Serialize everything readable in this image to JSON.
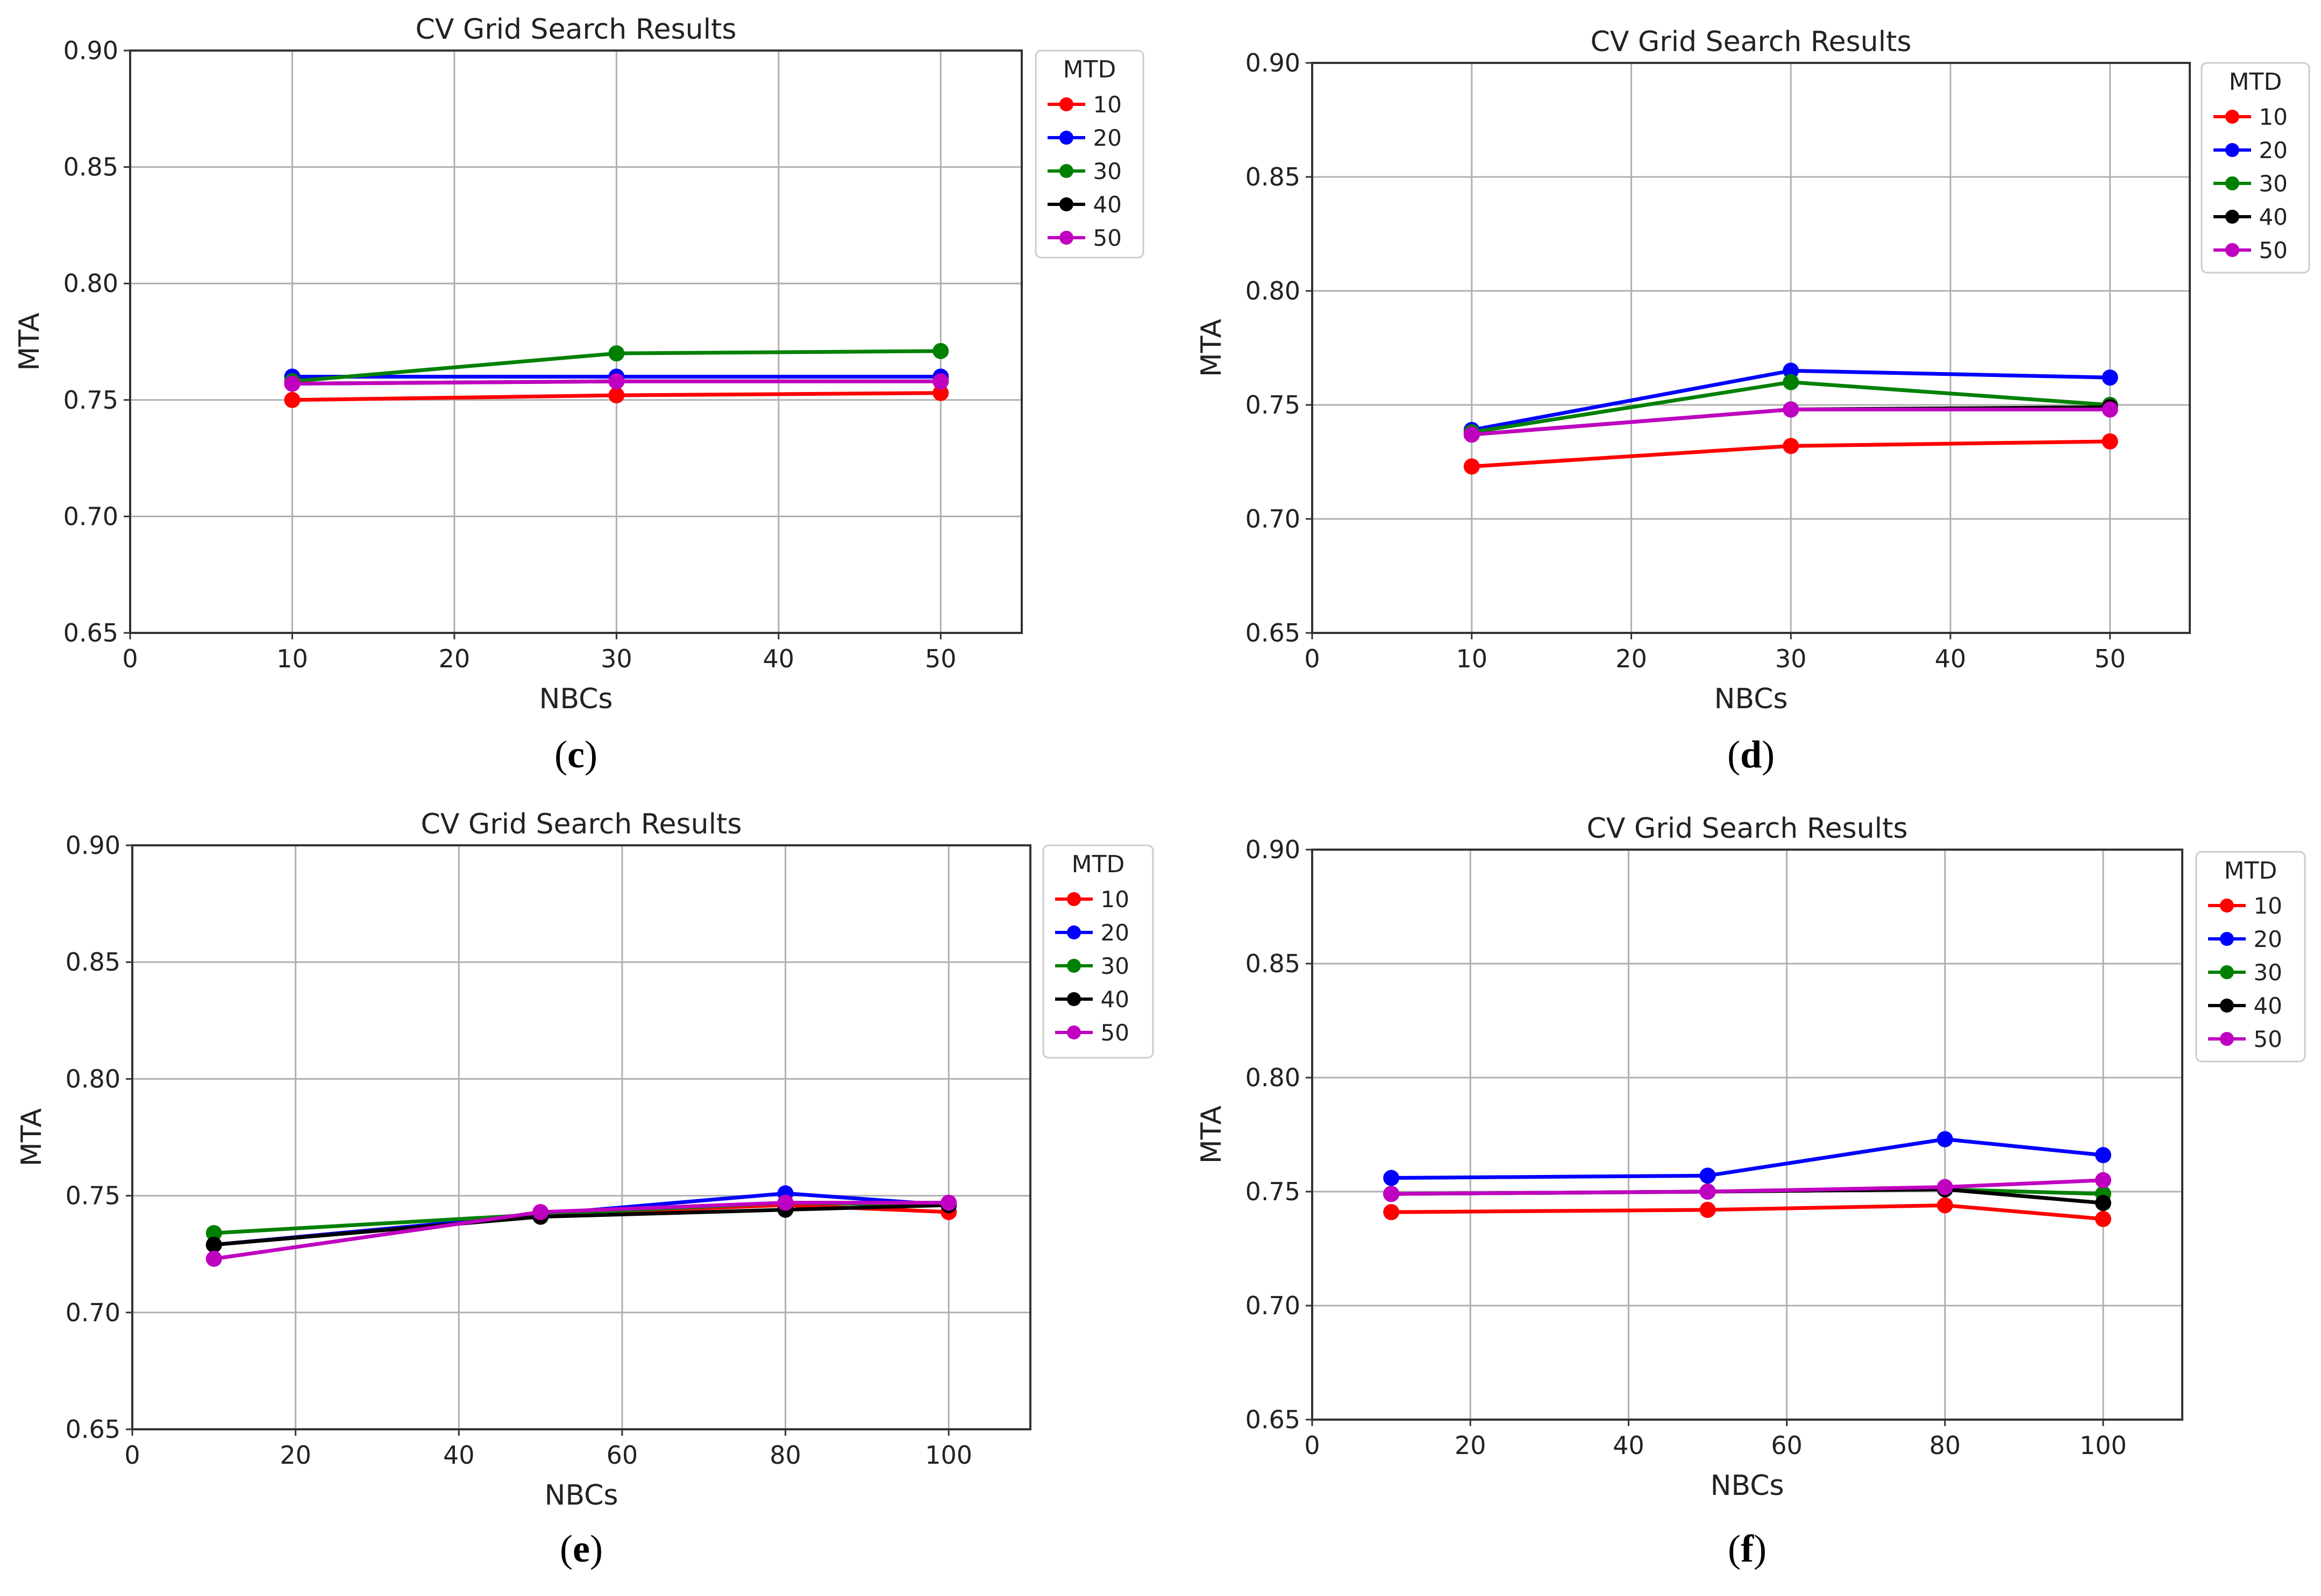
{
  "series_colors": {
    "10": "#ff0000",
    "20": "#0000ff",
    "30": "#008000",
    "40": "#000000",
    "50": "#c000c0"
  },
  "chart_data": [
    {
      "id": "c",
      "type": "line",
      "title": "CV Grid Search Results",
      "xlabel": "NBCs",
      "ylabel": "MTA",
      "caption_letter": "c",
      "xlim": [
        0,
        55
      ],
      "ylim": [
        0.65,
        0.9
      ],
      "xticks": [
        "0",
        "10",
        "20",
        "30",
        "40",
        "50"
      ],
      "yticks": [
        "0.65",
        "0.70",
        "0.75",
        "0.80",
        "0.85",
        "0.90"
      ],
      "grid": true,
      "legend_title": "MTD",
      "legend_position": "outside-right",
      "x": [
        10,
        30,
        50
      ],
      "series": [
        {
          "name": "10",
          "values": [
            0.75,
            0.752,
            0.753
          ]
        },
        {
          "name": "20",
          "values": [
            0.76,
            0.76,
            0.76
          ]
        },
        {
          "name": "30",
          "values": [
            0.758,
            0.77,
            0.771
          ]
        },
        {
          "name": "40",
          "values": [
            0.757,
            0.758,
            0.758
          ]
        },
        {
          "name": "50",
          "values": [
            0.757,
            0.758,
            0.758
          ]
        }
      ]
    },
    {
      "id": "d",
      "type": "line",
      "title": "CV Grid Search Results",
      "xlabel": "NBCs",
      "ylabel": "MTA",
      "caption_letter": "d",
      "xlim": [
        0,
        55
      ],
      "ylim": [
        0.65,
        0.9
      ],
      "xticks": [
        "0",
        "10",
        "20",
        "30",
        "40",
        "50"
      ],
      "yticks": [
        "0.65",
        "0.70",
        "0.75",
        "0.80",
        "0.85",
        "0.90"
      ],
      "grid": true,
      "legend_title": "MTD",
      "legend_position": "outside-right",
      "x": [
        10,
        30,
        50
      ],
      "series": [
        {
          "name": "10",
          "values": [
            0.723,
            0.732,
            0.734
          ]
        },
        {
          "name": "20",
          "values": [
            0.739,
            0.765,
            0.762
          ]
        },
        {
          "name": "30",
          "values": [
            0.738,
            0.76,
            0.75
          ]
        },
        {
          "name": "40",
          "values": [
            0.737,
            0.748,
            0.749
          ]
        },
        {
          "name": "50",
          "values": [
            0.737,
            0.748,
            0.748
          ]
        }
      ]
    },
    {
      "id": "e",
      "type": "line",
      "title": "CV Grid Search Results",
      "xlabel": "NBCs",
      "ylabel": "MTA",
      "caption_letter": "e",
      "xlim": [
        0,
        110
      ],
      "ylim": [
        0.65,
        0.9
      ],
      "xticks": [
        "0",
        "20",
        "40",
        "60",
        "80",
        "100"
      ],
      "yticks": [
        "0.65",
        "0.70",
        "0.75",
        "0.80",
        "0.85",
        "0.90"
      ],
      "grid": true,
      "legend_title": "MTD",
      "legend_position": "outside-right",
      "x": [
        10,
        50,
        80,
        100
      ],
      "series": [
        {
          "name": "10",
          "values": [
            0.729,
            0.742,
            0.746,
            0.743
          ]
        },
        {
          "name": "20",
          "values": [
            0.729,
            0.742,
            0.751,
            0.746
          ]
        },
        {
          "name": "30",
          "values": [
            0.734,
            0.742,
            0.747,
            0.746
          ]
        },
        {
          "name": "40",
          "values": [
            0.729,
            0.741,
            0.744,
            0.746
          ]
        },
        {
          "name": "50",
          "values": [
            0.723,
            0.743,
            0.747,
            0.747
          ]
        }
      ]
    },
    {
      "id": "f",
      "type": "line",
      "title": "CV Grid Search Results",
      "xlabel": "NBCs",
      "ylabel": "MTA",
      "caption_letter": "f",
      "xlim": [
        0,
        110
      ],
      "ylim": [
        0.65,
        0.9
      ],
      "xticks": [
        "0",
        "20",
        "40",
        "60",
        "80",
        "100"
      ],
      "yticks": [
        "0.65",
        "0.70",
        "0.75",
        "0.80",
        "0.85",
        "0.90"
      ],
      "grid": true,
      "legend_title": "MTD",
      "legend_position": "outside-right",
      "x": [
        10,
        50,
        80,
        100
      ],
      "series": [
        {
          "name": "10",
          "values": [
            0.741,
            0.742,
            0.744,
            0.738
          ]
        },
        {
          "name": "20",
          "values": [
            0.756,
            0.757,
            0.773,
            0.766
          ]
        },
        {
          "name": "30",
          "values": [
            0.749,
            0.75,
            0.751,
            0.749
          ]
        },
        {
          "name": "40",
          "values": [
            0.749,
            0.75,
            0.751,
            0.745
          ]
        },
        {
          "name": "50",
          "values": [
            0.749,
            0.75,
            0.752,
            0.755
          ]
        }
      ]
    }
  ]
}
